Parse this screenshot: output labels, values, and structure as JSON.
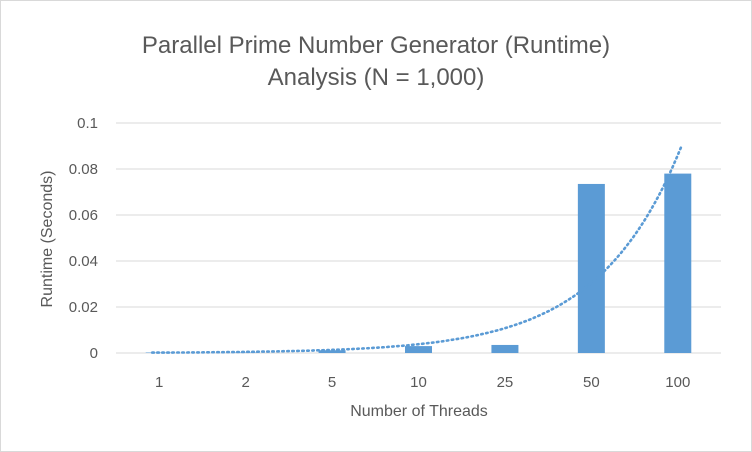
{
  "chart_data": {
    "type": "bar",
    "title_lines": [
      "Parallel Prime Number Generator (Runtime)",
      "Analysis (N = 1,000)"
    ],
    "xlabel": "Number of Threads",
    "ylabel": "Runtime (Seconds)",
    "categories": [
      "1",
      "2",
      "5",
      "10",
      "25",
      "50",
      "100"
    ],
    "series": [
      {
        "values": [
          0.0001,
          0.0002,
          0.0012,
          0.003,
          0.0035,
          0.0735,
          0.078
        ],
        "color": "#5B9BD5"
      }
    ],
    "trendline": {
      "type": "exponential",
      "style": "dotted",
      "color": "#5B9BD5",
      "start_value": 0.00017,
      "end_value": 0.086
    },
    "ylim": [
      0,
      0.1
    ],
    "yticks": [
      "0",
      "0.02",
      "0.04",
      "0.06",
      "0.08",
      "0.1"
    ],
    "ytick_values": [
      0,
      0.02,
      0.04,
      0.06,
      0.08,
      0.1
    ],
    "grid": true,
    "grid_color": "#d9d9d9",
    "legend": "none"
  }
}
